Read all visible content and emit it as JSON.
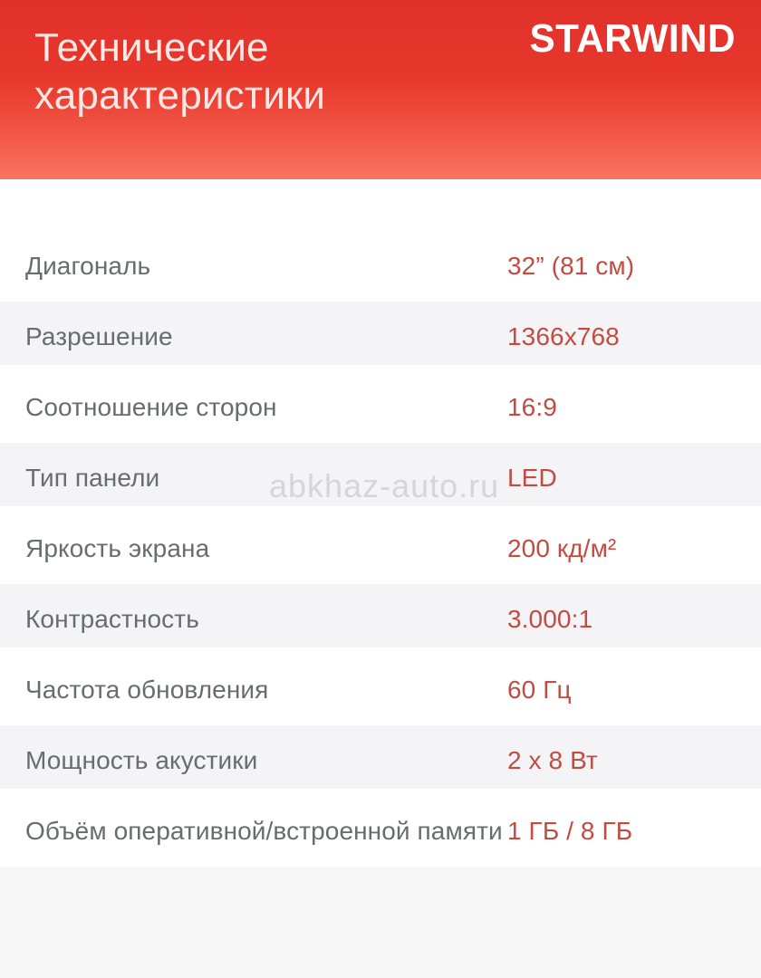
{
  "header": {
    "title_line1": "Технические",
    "title_line2": "характеристики",
    "brand": "STARWIND",
    "bg_top_color": "#e1302a",
    "bg_bottom_color": "#fa7362",
    "title_color": "#ffe7e3"
  },
  "watermark": "abkhaz-auto.ru",
  "specs": {
    "label_color": "#696b6e",
    "value_color": "#c24c41",
    "alt_row_color": "#f4f4f6",
    "rows": [
      {
        "label": "Диагональ",
        "value": "32” (81 см)"
      },
      {
        "label": "Разрешение",
        "value": "1366x768"
      },
      {
        "label": "Соотношение сторон",
        "value": "16:9"
      },
      {
        "label": "Тип панели",
        "value": "LED"
      },
      {
        "label": "Яркость экрана",
        "value": "200 кд/м²"
      },
      {
        "label": "Контрастность",
        "value": "3.000:1"
      },
      {
        "label": "Частота обновления",
        "value": "60 Гц"
      },
      {
        "label": "Мощность акустики",
        "value": "2 x 8 Вт"
      },
      {
        "label": "Объём оперативной/встроенной памяти",
        "value": "1 ГБ / 8 ГБ"
      }
    ]
  }
}
